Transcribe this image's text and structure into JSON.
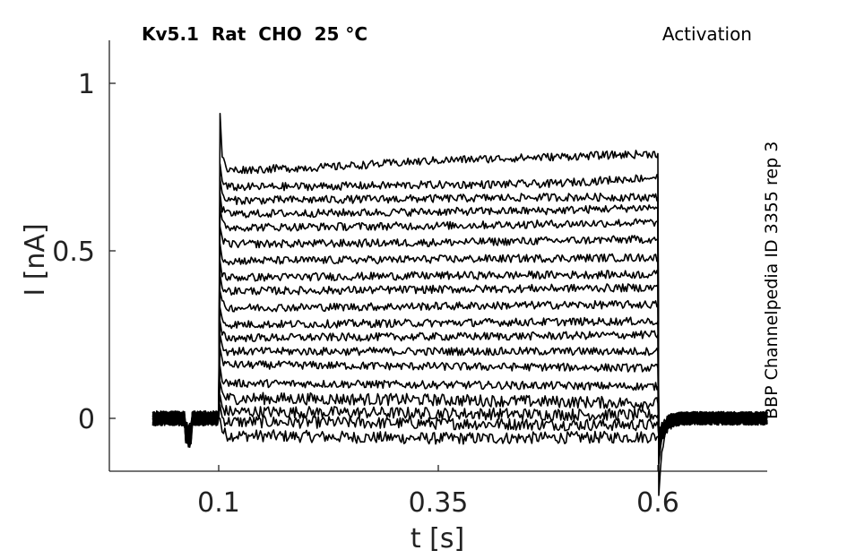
{
  "header": {
    "title": "Kv5.1  Rat  CHO  25 °C",
    "protocol": "Activation",
    "side_label": "BBP Channelpedia ID 3355 rep 3"
  },
  "chart_data": {
    "type": "line",
    "xlabel": "t [s]",
    "ylabel": "I [nA]",
    "xlim": [
      -0.0,
      0.75
    ],
    "ylim": [
      -0.16,
      1.13
    ],
    "xticks": [
      0.1,
      0.35,
      0.6
    ],
    "xtick_labels": [
      "0.1",
      "0.35",
      "0.6"
    ],
    "yticks": [
      0,
      0.5,
      1
    ],
    "ytick_labels": [
      "0",
      "0.5",
      "1"
    ],
    "grid": false,
    "line_color": "#000000",
    "pulse": {
      "start": 0.1,
      "end": 0.6
    },
    "trace_x_range": [
      0.025,
      0.725
    ],
    "series": [
      {
        "steady_values": [
          -0.05,
          -0.055,
          -0.06,
          -0.058,
          -0.055
        ]
      },
      {
        "steady_values": [
          -0.01,
          -0.012,
          -0.015,
          -0.018,
          -0.02
        ]
      },
      {
        "steady_values": [
          0.02,
          0.018,
          0.015,
          0.012,
          0.01
        ]
      },
      {
        "steady_values": [
          0.06,
          0.058,
          0.055,
          0.05,
          0.045
        ]
      },
      {
        "steady_values": [
          0.105,
          0.103,
          0.1,
          0.098,
          0.095
        ]
      },
      {
        "steady_values": [
          0.16,
          0.158,
          0.155,
          0.153,
          0.15
        ]
      },
      {
        "steady_values": [
          0.2,
          0.2,
          0.2,
          0.2,
          0.2
        ]
      },
      {
        "steady_values": [
          0.24,
          0.242,
          0.244,
          0.246,
          0.25
        ]
      },
      {
        "steady_values": [
          0.28,
          0.282,
          0.285,
          0.288,
          0.29
        ]
      },
      {
        "steady_values": [
          0.33,
          0.332,
          0.335,
          0.338,
          0.34
        ]
      },
      {
        "steady_values": [
          0.38,
          0.382,
          0.385,
          0.388,
          0.39
        ]
      },
      {
        "steady_values": [
          0.42,
          0.423,
          0.426,
          0.428,
          0.43
        ]
      },
      {
        "steady_values": [
          0.47,
          0.472,
          0.475,
          0.478,
          0.48
        ]
      },
      {
        "steady_values": [
          0.52,
          0.522,
          0.525,
          0.53,
          0.535
        ]
      },
      {
        "steady_values": [
          0.57,
          0.572,
          0.575,
          0.58,
          0.585
        ]
      },
      {
        "steady_values": [
          0.61,
          0.613,
          0.617,
          0.62,
          0.63
        ]
      },
      {
        "steady_values": [
          0.65,
          0.653,
          0.656,
          0.66,
          0.66
        ]
      },
      {
        "steady_values": [
          0.69,
          0.693,
          0.697,
          0.7,
          0.72
        ]
      },
      {
        "steady_values": [
          0.74,
          0.75,
          0.77,
          0.78,
          0.79
        ]
      }
    ],
    "peak_value": 0.91,
    "tail_min_value": -0.23
  }
}
